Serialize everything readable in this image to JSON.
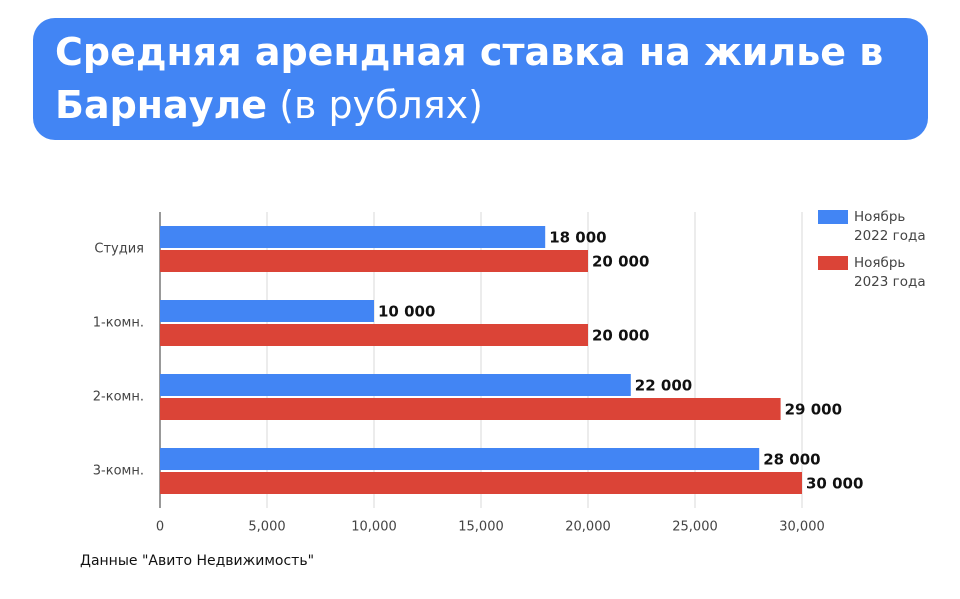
{
  "chart_data": {
    "type": "bar",
    "orientation": "horizontal",
    "title": "Средняя арендная ставка на жилье в Барнауле",
    "title_unit": "(в рублях)",
    "categories": [
      "Студия",
      "1-комн.",
      "2-комн.",
      "3-комн."
    ],
    "series": [
      {
        "name": "Ноябрь 2022 года",
        "color": "#4285f4",
        "values": [
          18000,
          10000,
          22000,
          28000
        ],
        "value_labels": [
          "18 000",
          "10 000",
          "22 000",
          "28 000"
        ]
      },
      {
        "name": "Ноябрь 2023 года",
        "color": "#db4437",
        "values": [
          20000,
          20000,
          29000,
          30000
        ],
        "value_labels": [
          "20 000",
          "20 000",
          "29 000",
          "30 000"
        ]
      }
    ],
    "xlim": [
      0,
      30000
    ],
    "xticks": [
      0,
      {
        "value": 5000,
        "label": "5,000"
      },
      {
        "value": 10000,
        "label": "10,000"
      },
      {
        "value": 15000,
        "label": "15,000"
      },
      {
        "value": 20000,
        "label": "20,000"
      },
      {
        "value": 25000,
        "label": "25,000"
      },
      {
        "value": 30000,
        "label": "30,000"
      }
    ],
    "grid": true,
    "legend": "top-right",
    "source": "Данные \"Авито Недвижимость\""
  }
}
